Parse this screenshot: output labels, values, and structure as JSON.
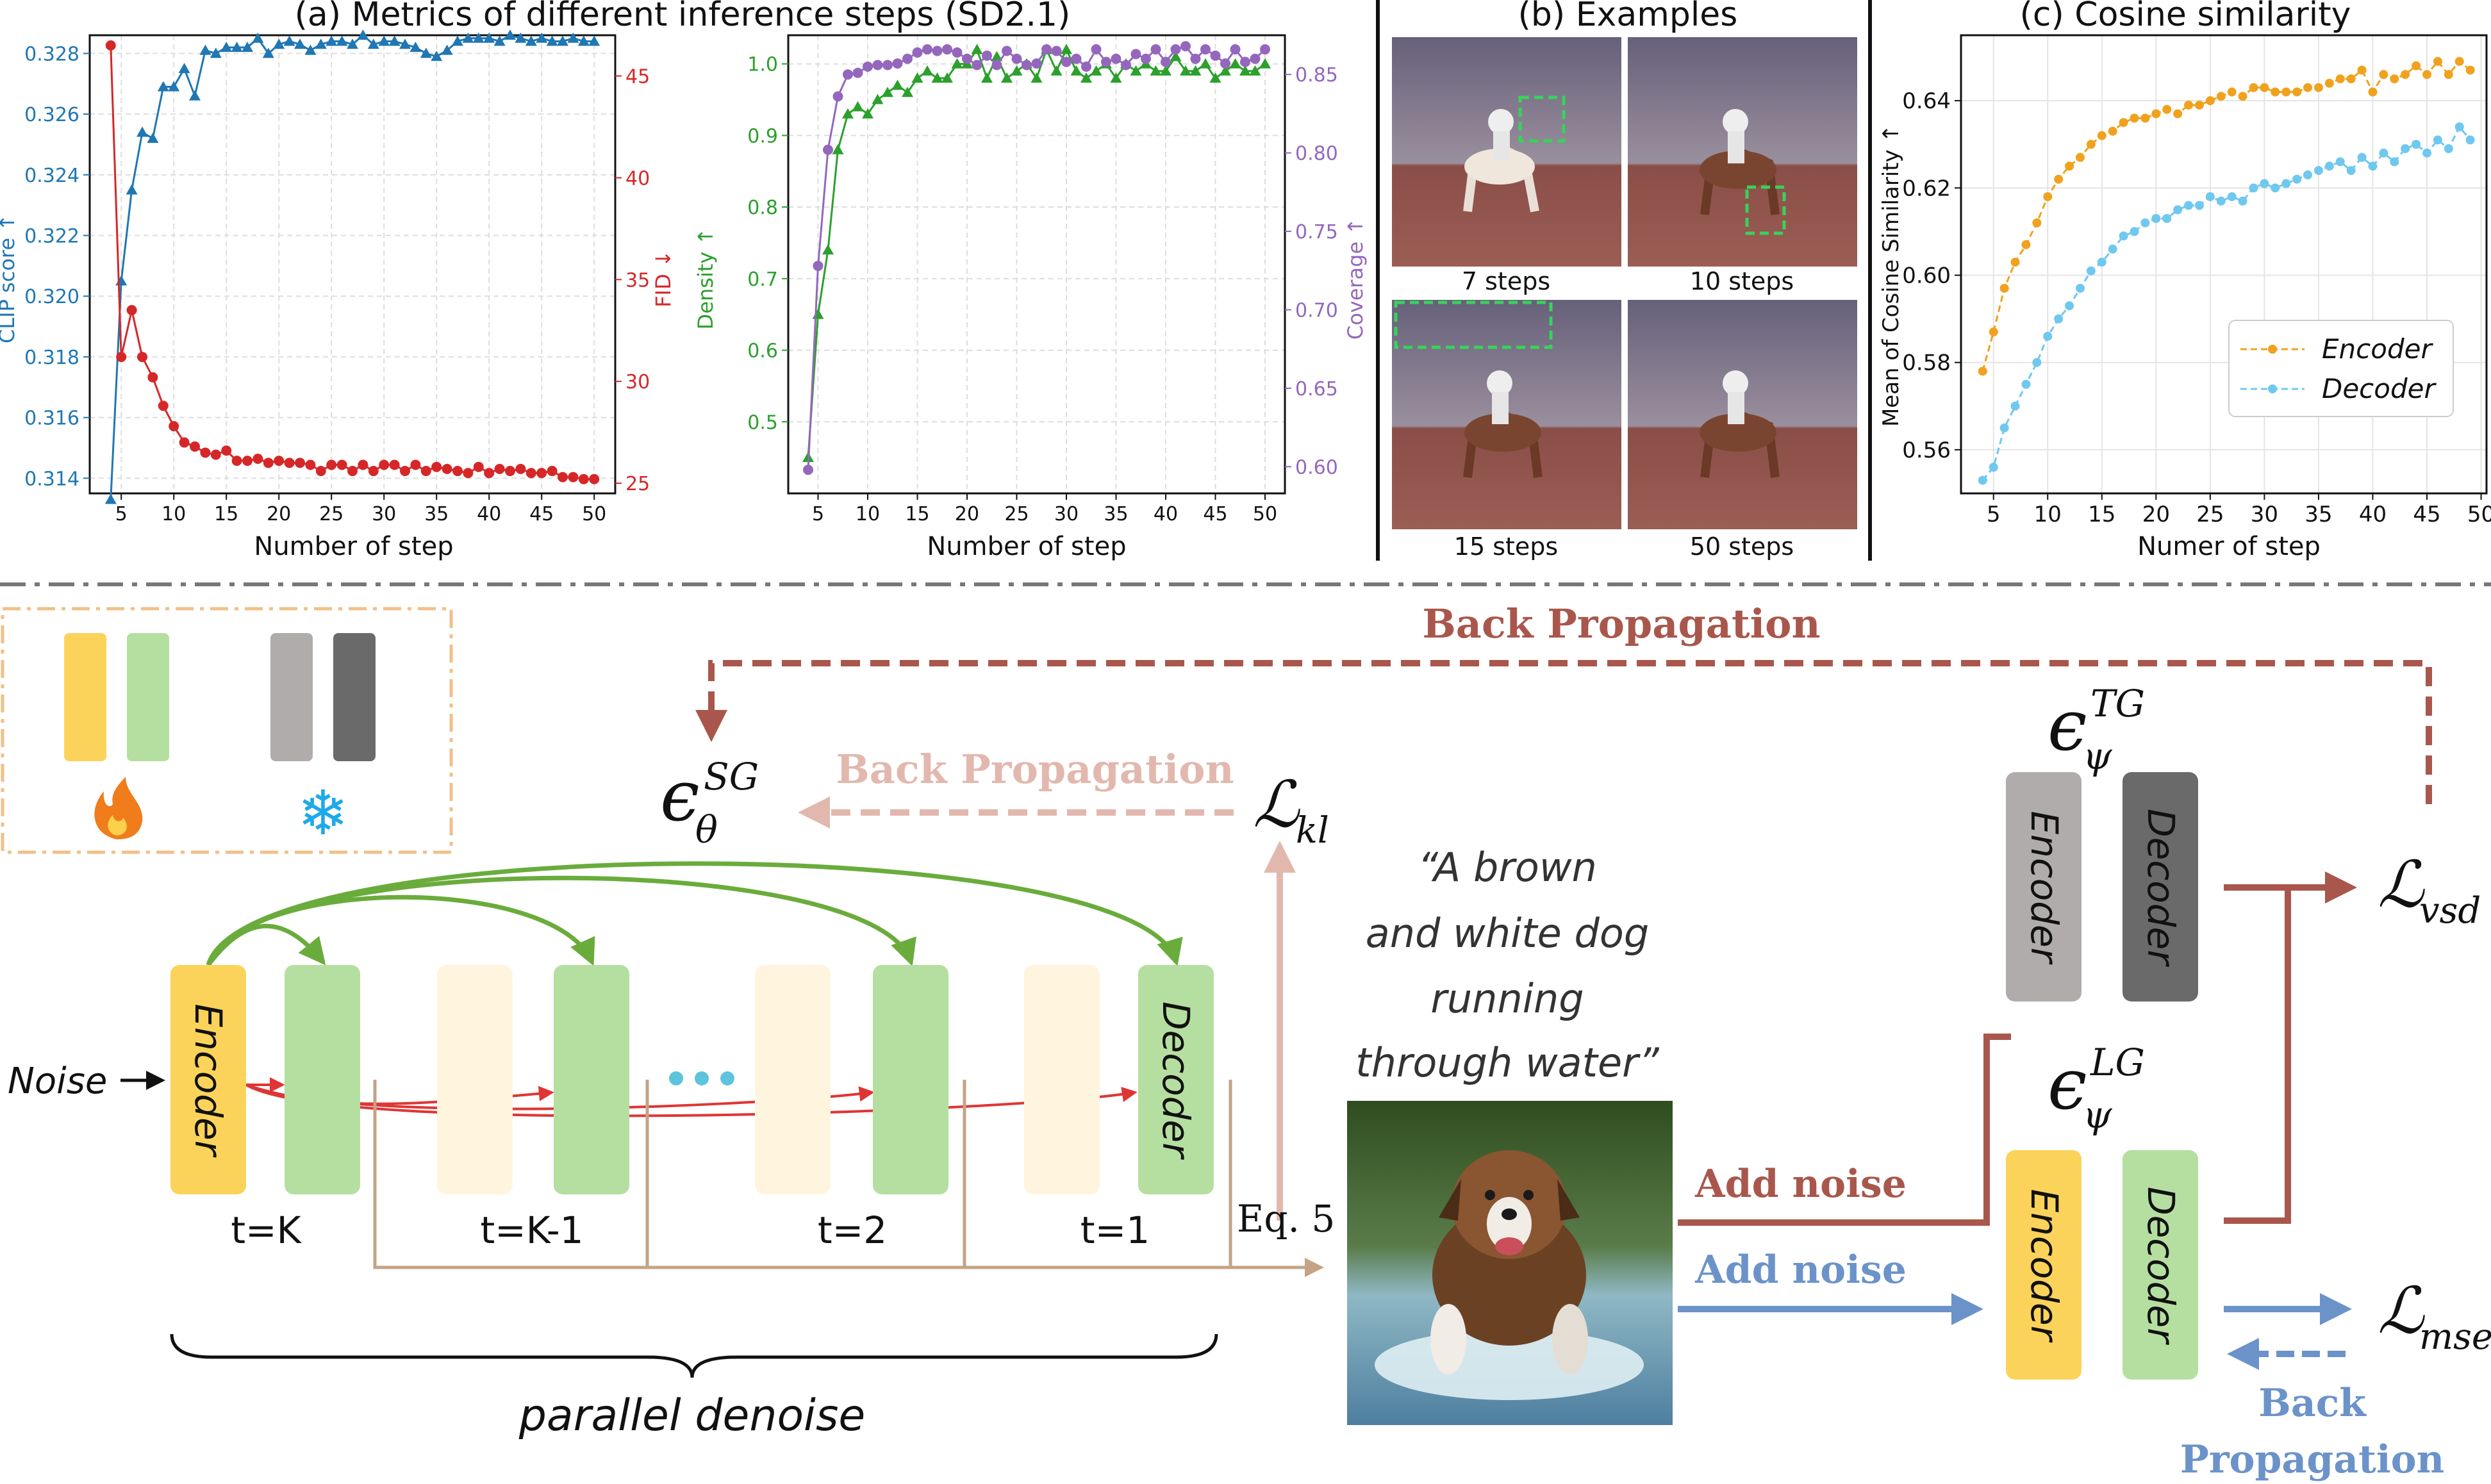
{
  "panel_a": {
    "title": "(a) Metrics of different inference steps (SD2.1)"
  },
  "panel_b": {
    "title": "(b) Examples",
    "captions": [
      "7 steps",
      "10 steps",
      "15 steps",
      "50 steps"
    ]
  },
  "panel_c": {
    "title": "(c) Cosine similarity"
  },
  "colors": {
    "clip": "#1f77b4",
    "fid": "#d62728",
    "density": "#2ca02c",
    "coverage": "#9467bd",
    "encoder": "#f0a21e",
    "decoder": "#6fc8ee",
    "encoder_block": "#fcd35a",
    "decoder_block": "#b5dfa0",
    "frozen_light": "#b0acac",
    "frozen_dark": "#6b6a6a",
    "bp_dark": "#a9574c",
    "bp_light": "#e2b8ae",
    "blue_arrow": "#6b93c9",
    "skip_green": "#6aac3c",
    "skip_red": "#e03535"
  },
  "chart_data": [
    {
      "type": "line",
      "xlabel": "Number of step",
      "x_ticks": [
        5,
        10,
        15,
        20,
        25,
        30,
        35,
        40,
        45,
        50
      ],
      "x": [
        4,
        5,
        6,
        7,
        8,
        9,
        10,
        11,
        12,
        13,
        14,
        15,
        16,
        17,
        18,
        19,
        20,
        21,
        22,
        23,
        24,
        25,
        26,
        27,
        28,
        29,
        30,
        31,
        32,
        33,
        34,
        35,
        36,
        37,
        38,
        39,
        40,
        41,
        42,
        43,
        44,
        45,
        46,
        47,
        48,
        49,
        50
      ],
      "y_left": {
        "label": "CLIP score ↑",
        "ylim": [
          0.3135,
          0.3286
        ],
        "ticks": [
          0.314,
          0.316,
          0.318,
          0.32,
          0.322,
          0.324,
          0.326,
          0.328
        ],
        "tick_labels": [
          "0.314",
          "0.316",
          "0.318",
          "0.320",
          "0.322",
          "0.324",
          "0.326",
          "0.328"
        ]
      },
      "y_right": {
        "label": "FID ↓",
        "ylim": [
          24.5,
          47
        ],
        "ticks": [
          25,
          30,
          35,
          40,
          45
        ],
        "tick_labels": [
          "25",
          "30",
          "35",
          "40",
          "45"
        ]
      },
      "series": [
        {
          "name": "CLIP score",
          "axis": "left",
          "marker": "triangle",
          "values": [
            0.3133,
            0.3205,
            0.3235,
            0.3254,
            0.3252,
            0.3269,
            0.3269,
            0.3275,
            0.3266,
            0.3281,
            0.328,
            0.3282,
            0.3282,
            0.3282,
            0.3285,
            0.328,
            0.3283,
            0.3284,
            0.3283,
            0.3281,
            0.3283,
            0.3284,
            0.3284,
            0.3283,
            0.3286,
            0.3283,
            0.3284,
            0.3284,
            0.3283,
            0.3282,
            0.328,
            0.3279,
            0.3281,
            0.3284,
            0.3285,
            0.3285,
            0.3285,
            0.3284,
            0.3286,
            0.3285,
            0.3284,
            0.3285,
            0.3284,
            0.3284,
            0.3285,
            0.3284,
            0.3284
          ]
        },
        {
          "name": "FID",
          "axis": "right",
          "marker": "circle",
          "values": [
            46.5,
            31.2,
            33.5,
            31.2,
            30.2,
            28.8,
            27.8,
            27.0,
            26.8,
            26.5,
            26.4,
            26.6,
            26.1,
            26.1,
            26.2,
            26.0,
            26.1,
            26.0,
            26.0,
            25.9,
            25.6,
            25.9,
            25.9,
            25.6,
            25.9,
            25.6,
            25.9,
            25.9,
            25.6,
            25.9,
            25.6,
            25.8,
            25.7,
            25.6,
            25.5,
            25.8,
            25.5,
            25.7,
            25.6,
            25.7,
            25.5,
            25.5,
            25.6,
            25.3,
            25.3,
            25.2,
            25.2
          ]
        }
      ]
    },
    {
      "type": "line",
      "xlabel": "Number of step",
      "x_ticks": [
        5,
        10,
        15,
        20,
        25,
        30,
        35,
        40,
        45,
        50
      ],
      "x": [
        4,
        5,
        6,
        7,
        8,
        9,
        10,
        11,
        12,
        13,
        14,
        15,
        16,
        17,
        18,
        19,
        20,
        21,
        22,
        23,
        24,
        25,
        26,
        27,
        28,
        29,
        30,
        31,
        32,
        33,
        34,
        35,
        36,
        37,
        38,
        39,
        40,
        41,
        42,
        43,
        44,
        45,
        46,
        47,
        48,
        49,
        50
      ],
      "y_left": {
        "label": "Density ↑",
        "ylim": [
          0.4,
          1.04
        ],
        "ticks": [
          0.5,
          0.6,
          0.7,
          0.8,
          0.9,
          1.0
        ],
        "tick_labels": [
          "0.5",
          "0.6",
          "0.7",
          "0.8",
          "0.9",
          "1.0"
        ]
      },
      "y_right": {
        "label": "Coverage ↑",
        "ylim": [
          0.583,
          0.875
        ],
        "ticks": [
          0.6,
          0.65,
          0.7,
          0.75,
          0.8,
          0.85
        ],
        "tick_labels": [
          "0.60",
          "0.65",
          "0.70",
          "0.75",
          "0.80",
          "0.85"
        ]
      },
      "series": [
        {
          "name": "Density",
          "axis": "left",
          "marker": "triangle",
          "values": [
            0.45,
            0.65,
            0.74,
            0.88,
            0.93,
            0.94,
            0.93,
            0.95,
            0.96,
            0.97,
            0.96,
            0.98,
            0.99,
            0.98,
            0.98,
            1.0,
            1.0,
            1.02,
            0.98,
            1.01,
            0.98,
            0.99,
            1.0,
            0.98,
            1.02,
            0.99,
            1.02,
            0.99,
            0.98,
            0.99,
            1.0,
            0.98,
            1.0,
            0.99,
            1.0,
            0.99,
            0.99,
            1.01,
            0.99,
            0.99,
            1.0,
            0.98,
            0.99,
            1.0,
            0.99,
            0.99,
            1.0
          ]
        },
        {
          "name": "Coverage",
          "axis": "right",
          "marker": "circle",
          "values": [
            0.598,
            0.728,
            0.802,
            0.836,
            0.85,
            0.851,
            0.855,
            0.856,
            0.856,
            0.857,
            0.86,
            0.864,
            0.866,
            0.865,
            0.866,
            0.864,
            0.86,
            0.856,
            0.862,
            0.856,
            0.865,
            0.86,
            0.856,
            0.857,
            0.866,
            0.865,
            0.858,
            0.86,
            0.855,
            0.866,
            0.858,
            0.86,
            0.856,
            0.863,
            0.86,
            0.866,
            0.858,
            0.866,
            0.868,
            0.86,
            0.866,
            0.862,
            0.857,
            0.866,
            0.858,
            0.86,
            0.866
          ]
        }
      ]
    },
    {
      "type": "line",
      "xlabel": "Numer of step",
      "ylabel": "Mean of Cosine Similarity ↑",
      "x_ticks": [
        5,
        10,
        15,
        20,
        25,
        30,
        35,
        40,
        45,
        50
      ],
      "ylim": [
        0.55,
        0.655
      ],
      "y_ticks": [
        0.56,
        0.58,
        0.6,
        0.62,
        0.64
      ],
      "y_tick_labels": [
        "0.56",
        "0.58",
        "0.60",
        "0.62",
        "0.64"
      ],
      "legend": "center-right",
      "x": [
        4,
        5,
        6,
        7,
        8,
        9,
        10,
        11,
        12,
        13,
        14,
        15,
        16,
        17,
        18,
        19,
        20,
        21,
        22,
        23,
        24,
        25,
        26,
        27,
        28,
        29,
        30,
        31,
        32,
        33,
        34,
        35,
        36,
        37,
        38,
        39,
        40,
        41,
        42,
        43,
        44,
        45,
        46,
        47,
        48,
        49
      ],
      "series": [
        {
          "name": "Encoder",
          "values": [
            0.578,
            0.587,
            0.597,
            0.603,
            0.607,
            0.612,
            0.618,
            0.622,
            0.625,
            0.627,
            0.63,
            0.632,
            0.633,
            0.635,
            0.636,
            0.636,
            0.637,
            0.638,
            0.637,
            0.639,
            0.639,
            0.64,
            0.641,
            0.642,
            0.641,
            0.643,
            0.643,
            0.642,
            0.642,
            0.642,
            0.643,
            0.643,
            0.644,
            0.645,
            0.645,
            0.647,
            0.642,
            0.646,
            0.645,
            0.646,
            0.648,
            0.646,
            0.649,
            0.646,
            0.649,
            0.647
          ]
        },
        {
          "name": "Decoder",
          "values": [
            0.553,
            0.556,
            0.565,
            0.57,
            0.575,
            0.58,
            0.586,
            0.59,
            0.593,
            0.597,
            0.601,
            0.603,
            0.606,
            0.609,
            0.61,
            0.612,
            0.613,
            0.613,
            0.615,
            0.616,
            0.616,
            0.618,
            0.617,
            0.618,
            0.617,
            0.62,
            0.621,
            0.62,
            0.621,
            0.622,
            0.623,
            0.624,
            0.625,
            0.626,
            0.624,
            0.627,
            0.625,
            0.628,
            0.626,
            0.629,
            0.63,
            0.628,
            0.631,
            0.629,
            0.634,
            0.631
          ]
        }
      ]
    }
  ],
  "diagram": {
    "legend_box": {
      "trainable_icon": "fire-icon",
      "frozen_icon": "snowflake-icon",
      "snowflake_glyph": "❄"
    },
    "noise_label": "Noise",
    "encoder_label": "Encoder",
    "decoder_label": "Decoder",
    "timesteps": [
      "t=K",
      "t=K-1",
      "t=2",
      "t=1"
    ],
    "eq5_label": "Eq. 5",
    "parallel_label": "parallel denoise",
    "ellipsis_dots": 3,
    "prompt_lines": [
      "“A brown",
      "and white dog",
      "running",
      "through water”"
    ],
    "bp_top": "Back Propagation",
    "bp_mid": "Back Propagation",
    "bp_bottom_lines": [
      "Back",
      "Propagation"
    ],
    "add_noise_top": "Add noise",
    "add_noise_bottom": "Add noise",
    "eps_sg": {
      "base": "ϵ",
      "sup": "SG",
      "sub": "θ"
    },
    "eps_tg": {
      "base": "ϵ",
      "sup": "TG",
      "sub": "ψ"
    },
    "eps_lg": {
      "base": "ϵ",
      "sup": "LG",
      "sub": "ψ"
    },
    "loss_kl": {
      "base": "ℒ",
      "sub": "kl"
    },
    "loss_vsd": {
      "base": "ℒ",
      "sub": "vsd"
    },
    "loss_mse": {
      "base": "ℒ",
      "sub": "mse"
    }
  }
}
